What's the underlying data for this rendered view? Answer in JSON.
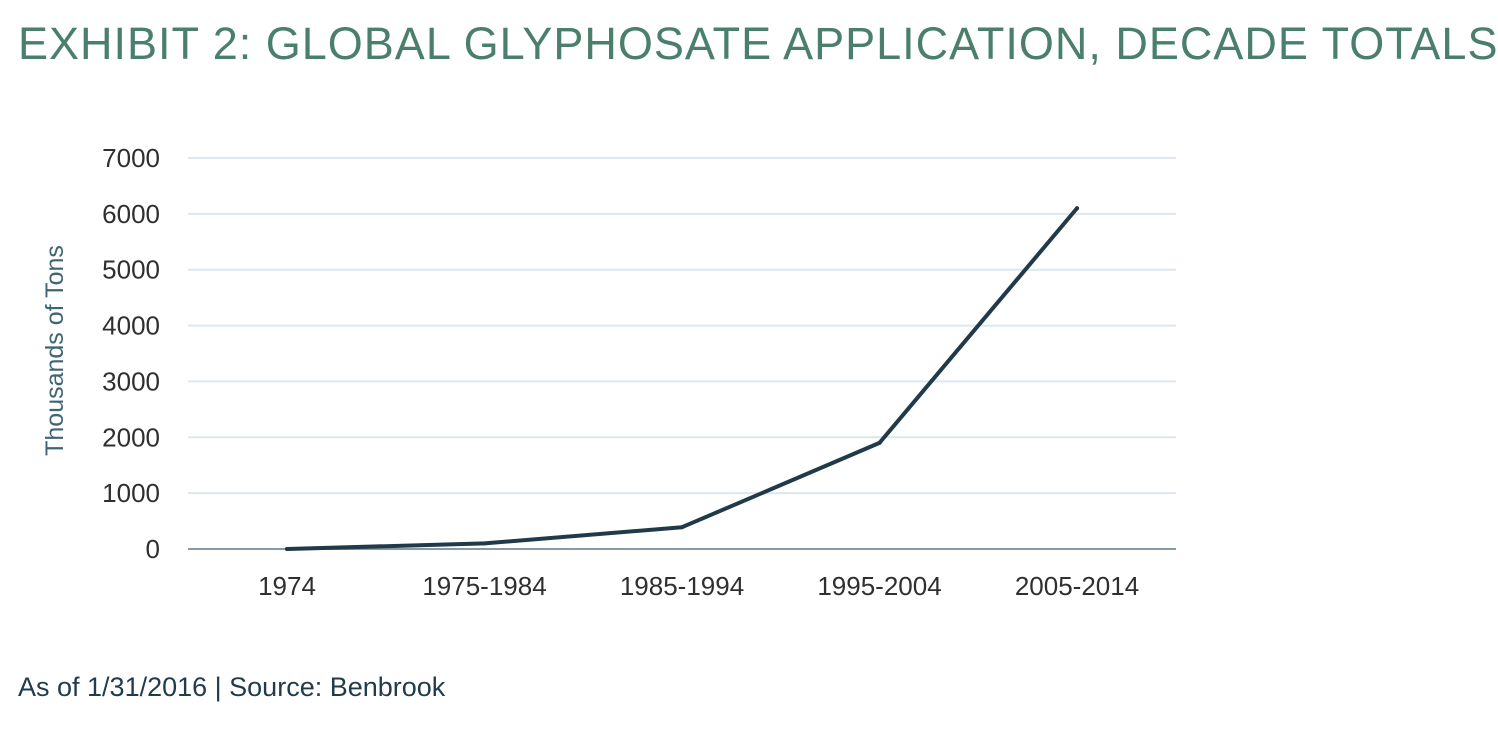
{
  "header": {
    "title": "EXHIBIT 2: GLOBAL GLYPHOSATE APPLICATION, DECADE TOTALS"
  },
  "footer": {
    "note": "As of 1/31/2016 | Source: Benbrook"
  },
  "colors": {
    "title": "#4a7f6b",
    "footnote": "#1f3b4d",
    "line": "#203a4a",
    "grid": "#dde7ee",
    "axis_label": "#3f6575",
    "tick_label": "#2f2f2f",
    "baseline": "#8a9aa3"
  },
  "chart_data": {
    "type": "line",
    "categories": [
      "1974",
      "1975-1984",
      "1985-1994",
      "1995-2004",
      "2005-2014"
    ],
    "series": [
      {
        "values": [
          0,
          100,
          390,
          1900,
          6100
        ]
      }
    ],
    "ylabel": "Thousands of Tons",
    "xlabel": "",
    "ylim": [
      0,
      7000
    ],
    "yticks": [
      0,
      1000,
      2000,
      3000,
      4000,
      5000,
      6000,
      7000
    ],
    "grid": true,
    "legend": "none"
  }
}
